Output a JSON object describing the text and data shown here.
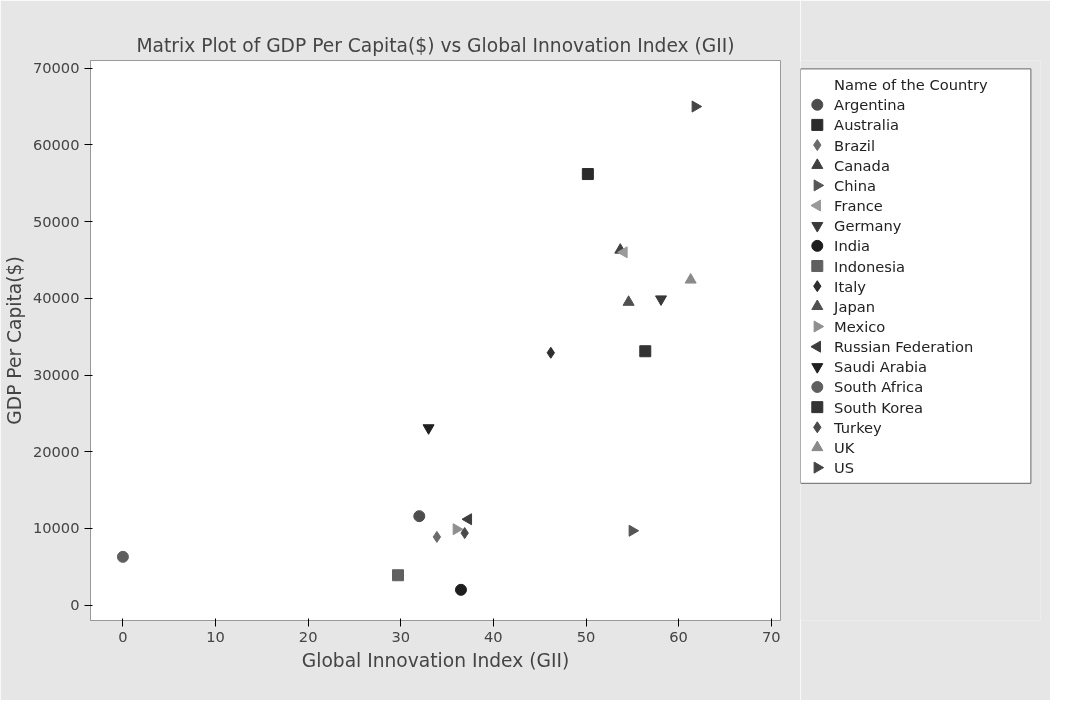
{
  "chart_data": {
    "type": "scatter",
    "title": "Matrix Plot of GDP Per Capita($) vs Global Innovation Index (GII)",
    "xlabel": "Global Innovation Index (GII)",
    "ylabel": "GDP Per Capita($)",
    "legend_title": "Name of the Country",
    "legend": "right",
    "grid": false,
    "xlim": [
      -3.5,
      71
    ],
    "ylim": [
      -2000,
      71000
    ],
    "xticks": [
      0,
      10,
      20,
      30,
      40,
      50,
      60,
      70
    ],
    "yticks": [
      0,
      10000,
      20000,
      30000,
      40000,
      50000,
      60000,
      70000
    ],
    "series": [
      {
        "name": "Argentina",
        "color": "#4d4d4d",
        "marker": "circle",
        "x": [
          32.0
        ],
        "values": [
          11600
        ]
      },
      {
        "name": "Australia",
        "color": "#2b2b2b",
        "marker": "square",
        "x": [
          50.2
        ],
        "values": [
          56200
        ]
      },
      {
        "name": "Brazil",
        "color": "#6b6b6b",
        "marker": "diamond",
        "x": [
          33.9
        ],
        "values": [
          8900
        ]
      },
      {
        "name": "Canada",
        "color": "#404040",
        "marker": "triangle",
        "x": [
          53.7
        ],
        "values": [
          46300
        ]
      },
      {
        "name": "China",
        "color": "#555555",
        "marker": "triangle_right",
        "x": [
          55.0
        ],
        "values": [
          9700
        ]
      },
      {
        "name": "France",
        "color": "#9a9a9a",
        "marker": "triangle_left",
        "x": [
          54.1
        ],
        "values": [
          46000
        ]
      },
      {
        "name": "Germany",
        "color": "#3a3a3a",
        "marker": "triangle_down",
        "x": [
          58.1
        ],
        "values": [
          39900
        ]
      },
      {
        "name": "India",
        "color": "#1e1e1e",
        "marker": "circle",
        "x": [
          36.5
        ],
        "values": [
          2000
        ]
      },
      {
        "name": "Indonesia",
        "color": "#606060",
        "marker": "square",
        "x": [
          29.7
        ],
        "values": [
          3900
        ]
      },
      {
        "name": "Italy",
        "color": "#2e2e2e",
        "marker": "diamond",
        "x": [
          46.2
        ],
        "values": [
          32900
        ]
      },
      {
        "name": "Japan",
        "color": "#505050",
        "marker": "triangle",
        "x": [
          54.6
        ],
        "values": [
          39500
        ]
      },
      {
        "name": "Mexico",
        "color": "#8f8f8f",
        "marker": "triangle_right",
        "x": [
          36.0
        ],
        "values": [
          9900
        ]
      },
      {
        "name": "Russian Federation",
        "color": "#3d3d3d",
        "marker": "triangle_left",
        "x": [
          37.3
        ],
        "values": [
          11200
        ]
      },
      {
        "name": "Saudi Arabia",
        "color": "#1f1f1f",
        "marker": "triangle_down",
        "x": [
          33.0
        ],
        "values": [
          23100
        ]
      },
      {
        "name": "South Africa",
        "color": "#5f5f5f",
        "marker": "circle",
        "x": [
          0.0
        ],
        "values": [
          6300
        ]
      },
      {
        "name": "South Korea",
        "color": "#333333",
        "marker": "square",
        "x": [
          56.4
        ],
        "values": [
          33100
        ]
      },
      {
        "name": "Turkey",
        "color": "#4a4a4a",
        "marker": "diamond",
        "x": [
          36.9
        ],
        "values": [
          9400
        ]
      },
      {
        "name": "UK",
        "color": "#8a8a8a",
        "marker": "triangle",
        "x": [
          61.3
        ],
        "values": [
          42400
        ]
      },
      {
        "name": "US",
        "color": "#444444",
        "marker": "triangle_right",
        "x": [
          61.8
        ],
        "values": [
          65000
        ]
      }
    ]
  }
}
